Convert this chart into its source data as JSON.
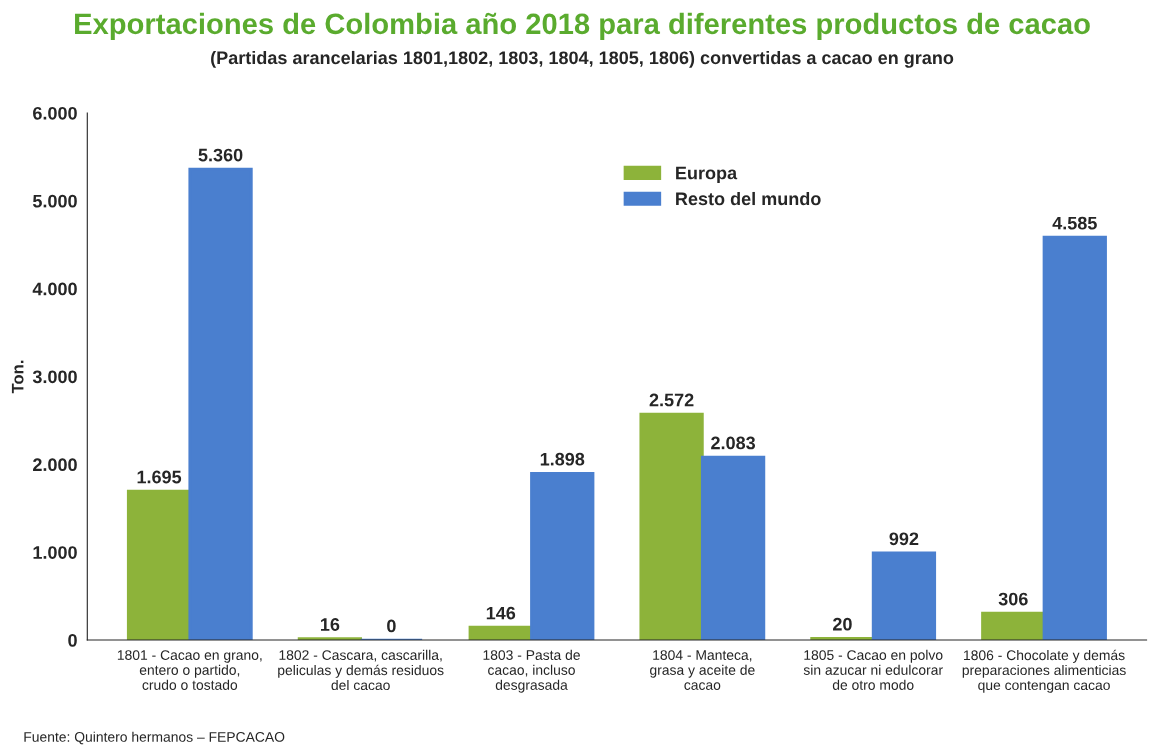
{
  "chart_data": {
    "type": "bar",
    "title": "Exportaciones de Colombia año 2018 para diferentes productos de cacao",
    "subtitle": "(Partidas arancelarias 1801,1802, 1803, 1804, 1805, 1806) convertidas a cacao en grano",
    "ylabel": "Ton.",
    "categories": [
      "1801 - Cacao en grano,\nentero o partido,\ncrudo o tostado",
      "1802 - Cascara, cascarilla,\npeliculas y demás residuos\ndel cacao",
      "1803 - Pasta de\ncacao, incluso\ndesgrasada",
      "1804 - Manteca,\ngrasa y aceite de\ncacao",
      "1805 - Cacao en polvo\nsin azucar ni edulcorar\nde otro modo",
      "1806 - Chocolate y demás\npreparaciones alimenticias\nque contengan cacao"
    ],
    "series": [
      {
        "name": "Europa",
        "color": "#8db33a",
        "values": [
          1695,
          16,
          146,
          2572,
          20,
          306
        ],
        "value_labels": [
          "1.695",
          "16",
          "146",
          "2.572",
          "20",
          "306"
        ]
      },
      {
        "name": "Resto del mundo",
        "color": "#4a7fcf",
        "values": [
          5360,
          0,
          1898,
          2083,
          992,
          4585
        ],
        "value_labels": [
          "5.360",
          "0",
          "1.898",
          "2.083",
          "992",
          "4.585"
        ]
      }
    ],
    "ylim": [
      0,
      6000
    ],
    "yticks": [
      {
        "value": 0,
        "label": "0"
      },
      {
        "value": 1000,
        "label": "1.000"
      },
      {
        "value": 2000,
        "label": "2.000"
      },
      {
        "value": 3000,
        "label": "3.000"
      },
      {
        "value": 4000,
        "label": "4.000"
      },
      {
        "value": 5000,
        "label": "5.000"
      },
      {
        "value": 6000,
        "label": "6.000"
      }
    ],
    "legend": "top",
    "annotations": [
      "Fuente: Quintero hermanos – FEPCACAO"
    ]
  }
}
